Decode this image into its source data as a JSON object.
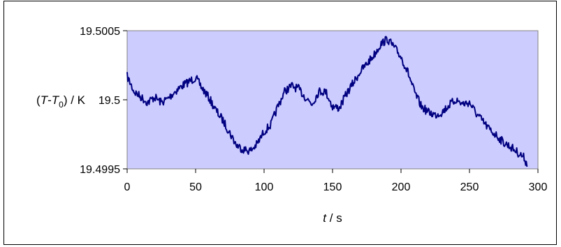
{
  "chart_data": {
    "type": "line",
    "xlabel": "t / s",
    "ylabel": "(T-T0) / K",
    "xlim": [
      0,
      300
    ],
    "ylim": [
      19.4995,
      19.5005
    ],
    "x_ticks": [
      "0",
      "50",
      "100",
      "150",
      "200",
      "250",
      "300"
    ],
    "y_ticks": [
      "19.5005",
      "19.5",
      "19.4995"
    ],
    "grid": false,
    "legend": "none",
    "colors": {
      "plot_bg": "#ccccff",
      "line": "#000080",
      "frame": "#808080"
    },
    "series": [
      {
        "name": "",
        "x": [
          0,
          5,
          10,
          15,
          20,
          25,
          30,
          35,
          40,
          45,
          50,
          55,
          60,
          65,
          70,
          75,
          80,
          85,
          90,
          95,
          100,
          105,
          110,
          115,
          120,
          125,
          130,
          135,
          140,
          145,
          150,
          155,
          160,
          165,
          170,
          175,
          180,
          185,
          190,
          195,
          200,
          205,
          210,
          215,
          220,
          225,
          230,
          235,
          240,
          245,
          250,
          255,
          260,
          265,
          270,
          275,
          280,
          285,
          290,
          292
        ],
        "y": [
          19.50017,
          19.50006,
          19.50002,
          19.49998,
          19.50002,
          19.49998,
          19.50001,
          19.50006,
          19.5001,
          19.50013,
          19.50016,
          19.50008,
          19.50001,
          19.49992,
          19.49985,
          19.49976,
          19.49967,
          19.49964,
          19.49963,
          19.49968,
          19.49977,
          19.49982,
          19.49995,
          19.50006,
          19.5001,
          19.50008,
          19.50002,
          19.49997,
          19.50006,
          19.50006,
          19.49995,
          19.49994,
          19.50004,
          19.50012,
          19.5002,
          19.50026,
          19.50032,
          19.5004,
          19.50044,
          19.50038,
          19.50031,
          19.5002,
          19.50005,
          19.49995,
          19.49991,
          19.49989,
          19.49991,
          19.49996,
          19.5,
          19.49997,
          19.49998,
          19.4999,
          19.49984,
          19.49978,
          19.49974,
          19.49969,
          19.49966,
          19.49962,
          19.49958,
          19.49953
        ]
      }
    ]
  }
}
